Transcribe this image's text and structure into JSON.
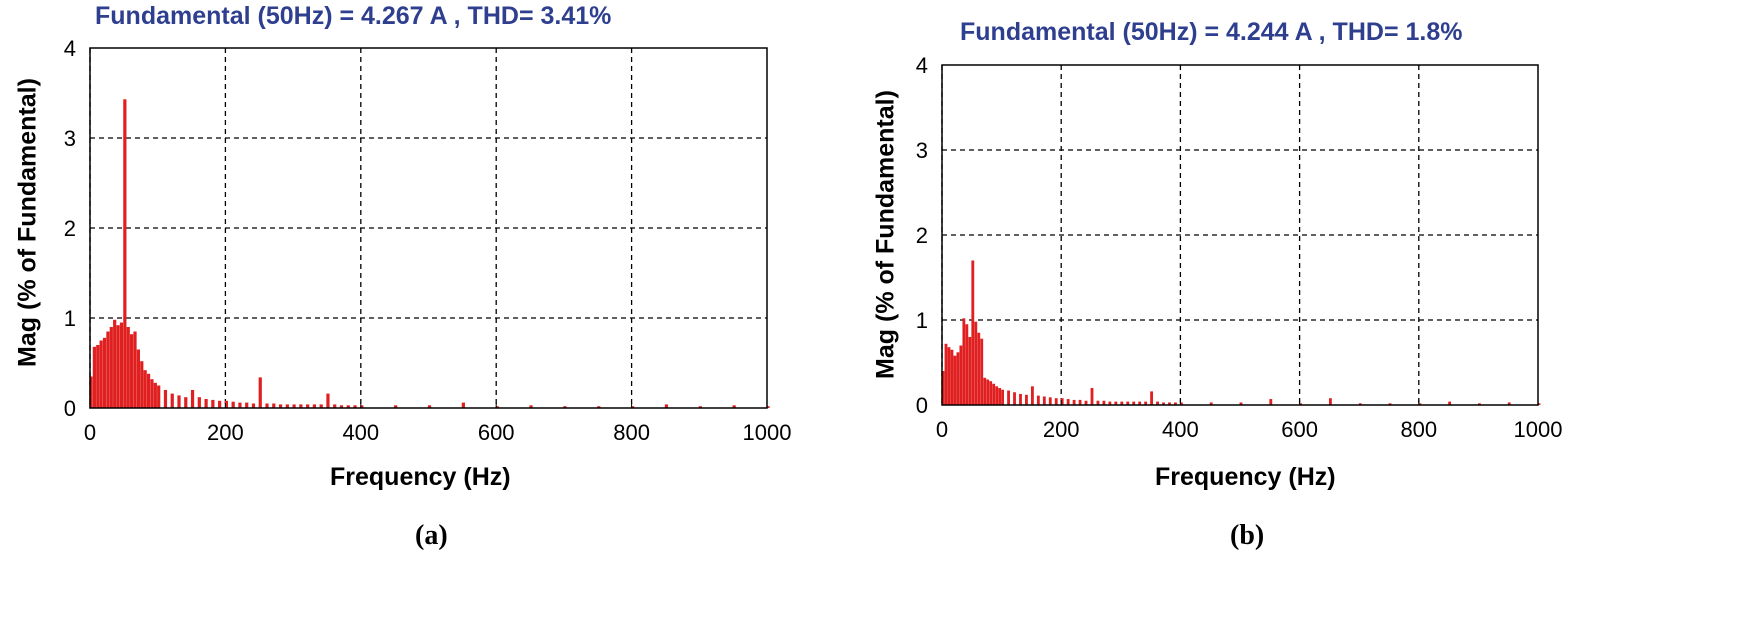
{
  "chart_data": [
    {
      "type": "bar",
      "panel_label": "(a)",
      "title": "Fundamental (50Hz) = 4.267 A , THD= 3.41%",
      "xlabel": "Frequency (Hz)",
      "ylabel": "Mag (% of Fundamental)",
      "xlim": [
        0,
        1000
      ],
      "ylim": [
        0,
        4
      ],
      "xticks": [
        0,
        200,
        400,
        600,
        800,
        1000
      ],
      "yticks": [
        0,
        1,
        2,
        3,
        4
      ],
      "grid": true,
      "bar_color": "#e02020",
      "x": [
        0,
        5,
        10,
        15,
        20,
        25,
        30,
        35,
        40,
        45,
        50,
        55,
        60,
        65,
        70,
        75,
        80,
        85,
        90,
        95,
        100,
        110,
        120,
        130,
        140,
        150,
        160,
        170,
        180,
        190,
        200,
        210,
        220,
        230,
        240,
        250,
        260,
        270,
        280,
        290,
        300,
        310,
        320,
        330,
        340,
        350,
        360,
        370,
        380,
        390,
        400,
        450,
        500,
        550,
        600,
        650,
        700,
        750,
        800,
        850,
        900,
        950,
        1000
      ],
      "values": [
        0.35,
        0.68,
        0.7,
        0.75,
        0.78,
        0.85,
        0.9,
        0.98,
        0.92,
        0.95,
        3.43,
        0.9,
        0.82,
        0.85,
        0.65,
        0.52,
        0.42,
        0.38,
        0.32,
        0.28,
        0.25,
        0.2,
        0.16,
        0.14,
        0.12,
        0.2,
        0.12,
        0.1,
        0.09,
        0.08,
        0.08,
        0.07,
        0.06,
        0.06,
        0.05,
        0.34,
        0.05,
        0.05,
        0.04,
        0.04,
        0.04,
        0.04,
        0.04,
        0.04,
        0.04,
        0.16,
        0.04,
        0.03,
        0.03,
        0.03,
        0.03,
        0.03,
        0.03,
        0.06,
        0.02,
        0.03,
        0.02,
        0.02,
        0.02,
        0.04,
        0.02,
        0.03,
        0.02
      ]
    },
    {
      "type": "bar",
      "panel_label": "(b)",
      "title": "Fundamental (50Hz) = 4.244 A , THD= 1.8%",
      "xlabel": "Frequency (Hz)",
      "ylabel": "Mag (% of Fundamental)",
      "xlim": [
        0,
        1000
      ],
      "ylim": [
        0,
        4
      ],
      "xticks": [
        0,
        200,
        400,
        600,
        800,
        1000
      ],
      "yticks": [
        0,
        1,
        2,
        3,
        4
      ],
      "grid": true,
      "bar_color": "#e02020",
      "x": [
        0,
        5,
        10,
        15,
        20,
        25,
        30,
        35,
        40,
        45,
        50,
        55,
        60,
        65,
        70,
        75,
        80,
        85,
        90,
        95,
        100,
        110,
        120,
        130,
        140,
        150,
        160,
        170,
        180,
        190,
        200,
        210,
        220,
        230,
        240,
        250,
        260,
        270,
        280,
        290,
        300,
        310,
        320,
        330,
        340,
        350,
        360,
        370,
        380,
        390,
        400,
        450,
        500,
        550,
        600,
        650,
        700,
        750,
        800,
        850,
        900,
        950,
        1000
      ],
      "values": [
        0.4,
        0.72,
        0.68,
        0.65,
        0.58,
        0.62,
        0.7,
        1.02,
        0.95,
        0.8,
        1.7,
        0.98,
        0.85,
        0.78,
        0.32,
        0.3,
        0.28,
        0.25,
        0.22,
        0.2,
        0.18,
        0.17,
        0.15,
        0.13,
        0.12,
        0.22,
        0.11,
        0.1,
        0.09,
        0.08,
        0.08,
        0.07,
        0.06,
        0.06,
        0.05,
        0.2,
        0.05,
        0.05,
        0.04,
        0.04,
        0.04,
        0.04,
        0.04,
        0.04,
        0.04,
        0.16,
        0.04,
        0.03,
        0.03,
        0.03,
        0.03,
        0.03,
        0.03,
        0.07,
        0.02,
        0.08,
        0.02,
        0.02,
        0.02,
        0.04,
        0.02,
        0.03,
        0.02
      ]
    }
  ]
}
